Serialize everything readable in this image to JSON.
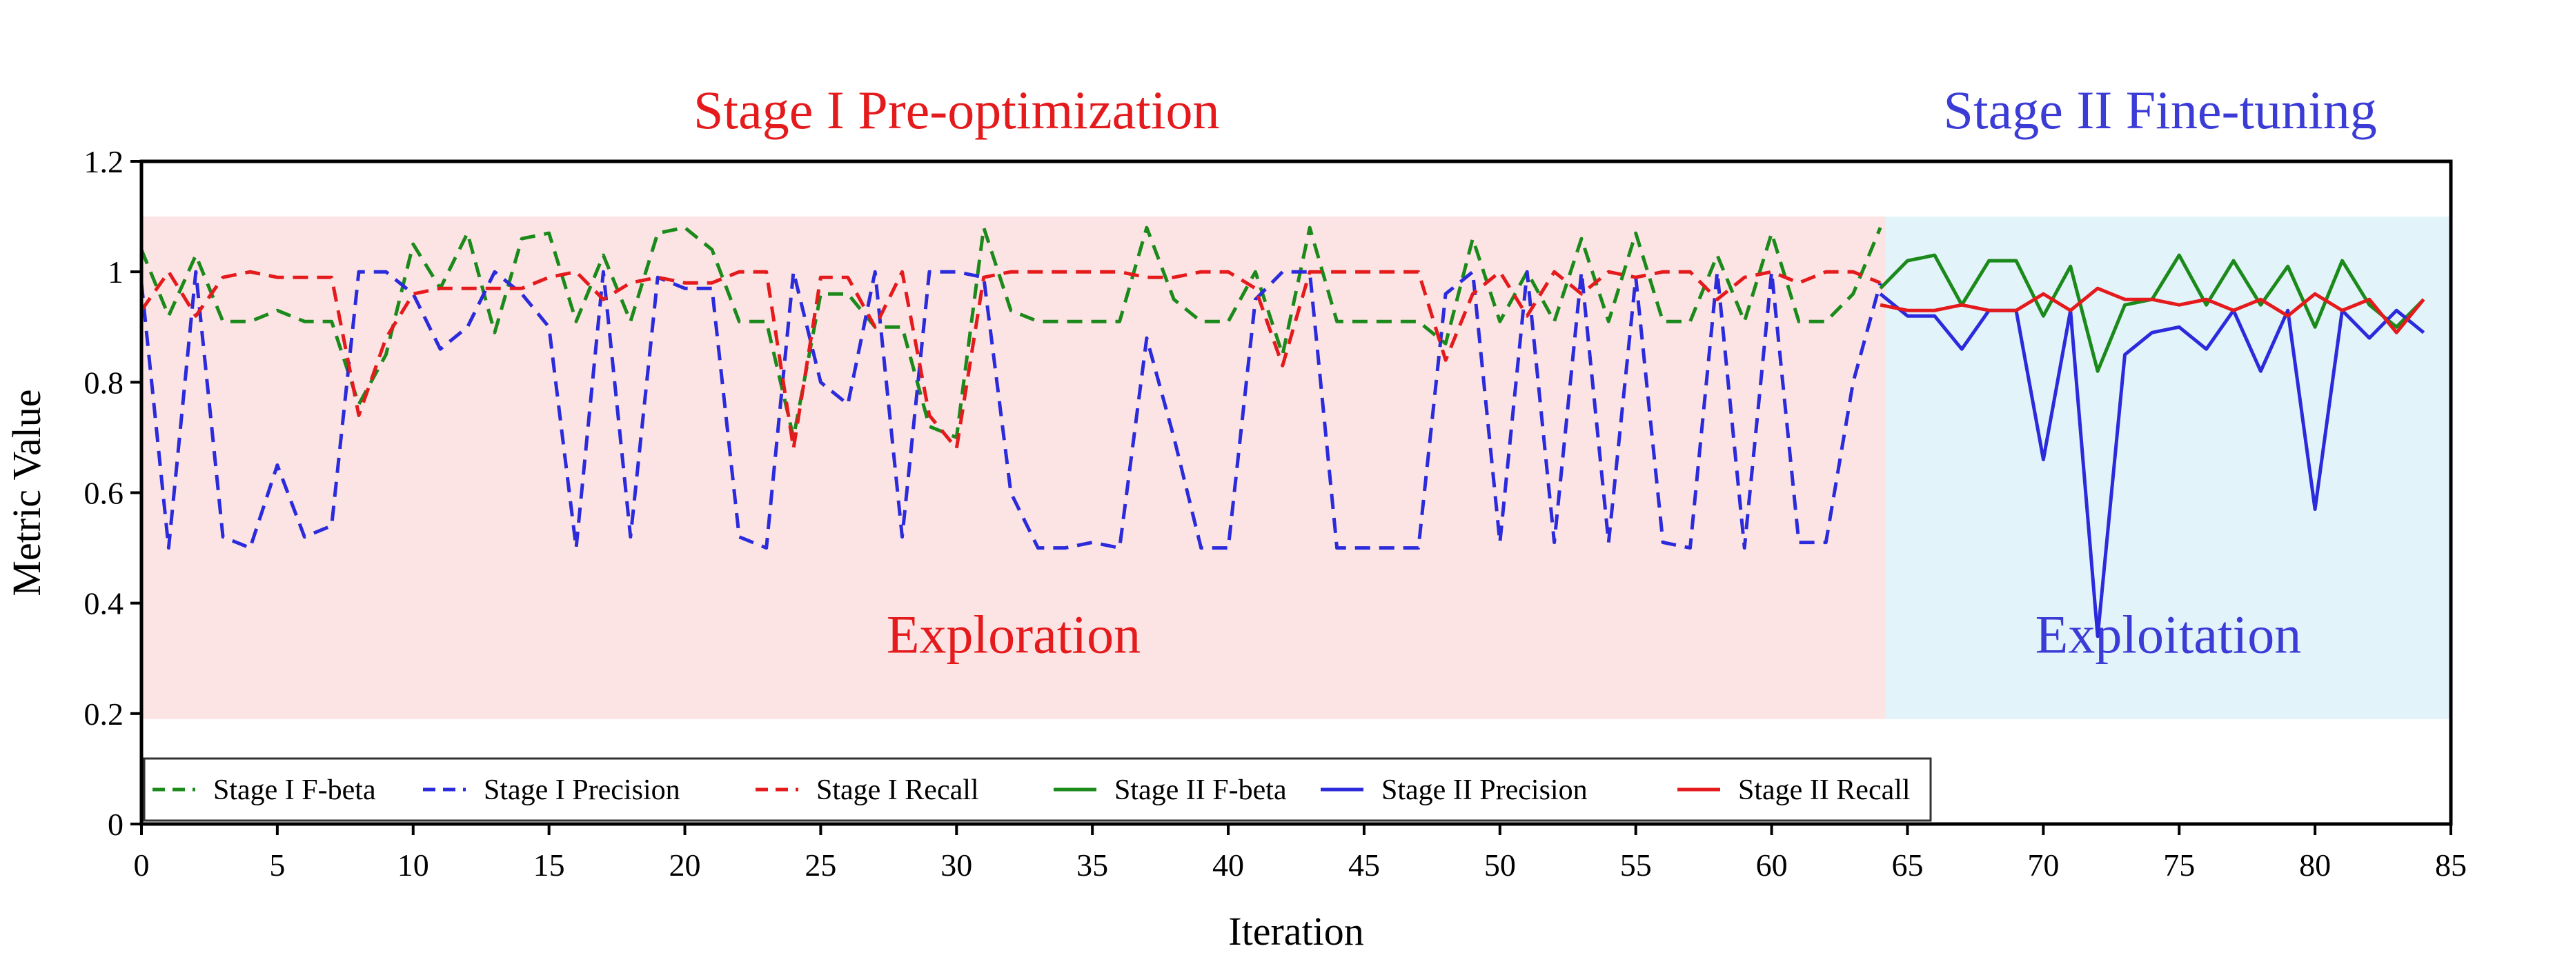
{
  "chart_data": {
    "type": "line",
    "xlabel": "Iteration",
    "ylabel": "Metric Value",
    "xlim": [
      0,
      85
    ],
    "ylim": [
      0,
      1.2
    ],
    "xticks": [
      0,
      5,
      10,
      15,
      20,
      25,
      30,
      35,
      40,
      45,
      50,
      55,
      60,
      65,
      70,
      75,
      80,
      85
    ],
    "yticks": [
      0,
      0.2,
      0.4,
      0.6,
      0.8,
      1,
      1.2
    ],
    "grid": false,
    "legend_position": "bottom-left",
    "regions": [
      {
        "label": "Exploration",
        "x_start": 0,
        "x_end": 64.2,
        "y_start": 0.19,
        "y_end": 1.1,
        "fill": "#fce4e4",
        "label_color": "#e41a1c",
        "label_y": 0.31
      },
      {
        "label": "Exploitation",
        "x_start": 64.2,
        "x_end": 85,
        "y_start": 0.19,
        "y_end": 1.1,
        "fill": "#e3f3fa",
        "label_color": "#3b3bd6",
        "label_y": 0.31
      }
    ],
    "stage_titles": [
      {
        "text": "Stage I Pre-optimization",
        "x": 30,
        "color": "#e41a1c"
      },
      {
        "text": "Stage II Fine-tuning",
        "x": 74.3,
        "color": "#3b3bd6"
      }
    ],
    "series": [
      {
        "name": "Stage I F-beta",
        "color": "#1b8a1b",
        "style": "dashed",
        "x": [
          0,
          1,
          2,
          3,
          4,
          5,
          6,
          7,
          8,
          9,
          10,
          11,
          12,
          13,
          14,
          15,
          16,
          17,
          18,
          19,
          20,
          21,
          22,
          23,
          24,
          25,
          26,
          27,
          28,
          29,
          30,
          31,
          32,
          33,
          34,
          35,
          36,
          37,
          38,
          39,
          40,
          41,
          42,
          43,
          44,
          45,
          46,
          47,
          48,
          49,
          50,
          51,
          52,
          53,
          54,
          55,
          56,
          57,
          58,
          59,
          60,
          61,
          62,
          63,
          64
        ],
        "values": [
          1.04,
          0.92,
          1.03,
          0.91,
          0.91,
          0.93,
          0.91,
          0.91,
          0.76,
          0.85,
          1.05,
          0.97,
          1.07,
          0.89,
          1.06,
          1.07,
          0.91,
          1.03,
          0.91,
          1.07,
          1.08,
          1.04,
          0.91,
          0.91,
          0.7,
          0.96,
          0.96,
          0.9,
          0.9,
          0.72,
          0.7,
          1.08,
          0.93,
          0.91,
          0.91,
          0.91,
          0.91,
          1.08,
          0.95,
          0.91,
          0.91,
          1.0,
          0.85,
          1.08,
          0.91,
          0.91,
          0.91,
          0.91,
          0.87,
          1.06,
          0.91,
          1.0,
          0.91,
          1.06,
          0.91,
          1.07,
          0.91,
          0.91,
          1.03,
          0.91,
          1.07,
          0.91,
          0.91,
          0.96,
          1.08
        ]
      },
      {
        "name": "Stage I Precision",
        "color": "#2b2bdc",
        "style": "dashed",
        "x": [
          0,
          1,
          2,
          3,
          4,
          5,
          6,
          7,
          8,
          9,
          10,
          11,
          12,
          13,
          14,
          15,
          16,
          17,
          18,
          19,
          20,
          21,
          22,
          23,
          24,
          25,
          26,
          27,
          28,
          29,
          30,
          31,
          32,
          33,
          34,
          35,
          36,
          37,
          38,
          39,
          40,
          41,
          42,
          43,
          44,
          45,
          46,
          47,
          48,
          49,
          50,
          51,
          52,
          53,
          54,
          55,
          56,
          57,
          58,
          59,
          60,
          61,
          62,
          63,
          64
        ],
        "values": [
          0.98,
          0.5,
          1.0,
          0.52,
          0.5,
          0.65,
          0.52,
          0.54,
          1.0,
          1.0,
          0.96,
          0.86,
          0.9,
          1.0,
          0.96,
          0.9,
          0.5,
          1.0,
          0.52,
          0.99,
          0.97,
          0.97,
          0.52,
          0.5,
          1.0,
          0.8,
          0.76,
          1.0,
          0.52,
          1.0,
          1.0,
          0.99,
          0.6,
          0.5,
          0.5,
          0.51,
          0.5,
          0.88,
          0.7,
          0.5,
          0.5,
          0.95,
          1.0,
          1.0,
          0.5,
          0.5,
          0.5,
          0.5,
          0.96,
          1.0,
          0.51,
          1.0,
          0.51,
          1.0,
          0.51,
          0.99,
          0.51,
          0.5,
          1.0,
          0.5,
          1.0,
          0.51,
          0.51,
          0.8,
          0.98
        ]
      },
      {
        "name": "Stage I Recall",
        "color": "#e41a1c",
        "style": "dashed",
        "x": [
          0,
          1,
          2,
          3,
          4,
          5,
          6,
          7,
          8,
          9,
          10,
          11,
          12,
          13,
          14,
          15,
          16,
          17,
          18,
          19,
          20,
          21,
          22,
          23,
          24,
          25,
          26,
          27,
          28,
          29,
          30,
          31,
          32,
          33,
          34,
          35,
          36,
          37,
          38,
          39,
          40,
          41,
          42,
          43,
          44,
          45,
          46,
          47,
          48,
          49,
          50,
          51,
          52,
          53,
          54,
          55,
          56,
          57,
          58,
          59,
          60,
          61,
          62,
          63,
          64
        ],
        "values": [
          0.93,
          1.0,
          0.92,
          0.99,
          1.0,
          0.99,
          0.99,
          0.99,
          0.74,
          0.88,
          0.96,
          0.97,
          0.97,
          0.97,
          0.97,
          0.99,
          1.0,
          0.95,
          0.98,
          0.99,
          0.98,
          0.98,
          1.0,
          1.0,
          0.68,
          0.99,
          0.99,
          0.9,
          1.0,
          0.74,
          0.68,
          0.99,
          1.0,
          1.0,
          1.0,
          1.0,
          1.0,
          0.99,
          0.99,
          1.0,
          1.0,
          0.97,
          0.83,
          1.0,
          1.0,
          1.0,
          1.0,
          1.0,
          0.84,
          0.96,
          1.0,
          0.92,
          1.0,
          0.96,
          1.0,
          0.99,
          1.0,
          1.0,
          0.95,
          0.99,
          1.0,
          0.98,
          1.0,
          1.0,
          0.98
        ]
      },
      {
        "name": "Stage II F-beta",
        "color": "#1b8a1b",
        "style": "solid",
        "x": [
          64,
          65,
          66,
          67,
          68,
          69,
          70,
          71,
          72,
          73,
          74,
          75,
          76,
          77,
          78,
          79,
          80,
          81,
          82,
          83,
          84
        ],
        "values": [
          0.97,
          1.02,
          1.03,
          0.94,
          1.02,
          1.02,
          0.92,
          1.01,
          0.82,
          0.94,
          0.95,
          1.03,
          0.94,
          1.02,
          0.94,
          1.01,
          0.9,
          1.02,
          0.94,
          0.9,
          0.95
        ]
      },
      {
        "name": "Stage II Precision",
        "color": "#2b2bdc",
        "style": "solid",
        "x": [
          64,
          65,
          66,
          67,
          68,
          69,
          70,
          71,
          72,
          73,
          74,
          75,
          76,
          77,
          78,
          79,
          80,
          81,
          82,
          83,
          84
        ],
        "values": [
          0.96,
          0.92,
          0.92,
          0.86,
          0.93,
          0.93,
          0.66,
          0.93,
          0.34,
          0.85,
          0.89,
          0.9,
          0.86,
          0.93,
          0.82,
          0.93,
          0.57,
          0.93,
          0.88,
          0.93,
          0.89
        ]
      },
      {
        "name": "Stage II Recall",
        "color": "#e41a1c",
        "style": "solid",
        "x": [
          64,
          65,
          66,
          67,
          68,
          69,
          70,
          71,
          72,
          73,
          74,
          75,
          76,
          77,
          78,
          79,
          80,
          81,
          82,
          83,
          84
        ],
        "values": [
          0.94,
          0.93,
          0.93,
          0.94,
          0.93,
          0.93,
          0.96,
          0.93,
          0.97,
          0.95,
          0.95,
          0.94,
          0.95,
          0.93,
          0.95,
          0.92,
          0.96,
          0.93,
          0.95,
          0.89,
          0.95
        ]
      }
    ]
  }
}
